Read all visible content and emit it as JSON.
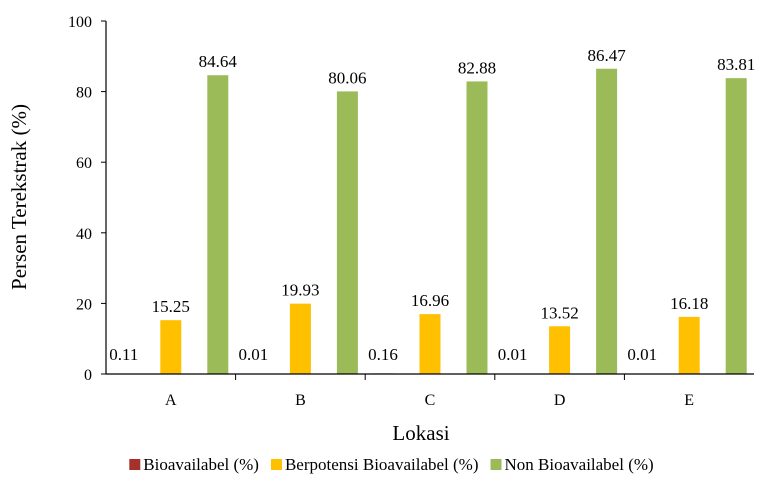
{
  "chart_data": {
    "type": "bar",
    "xlabel": "Lokasi",
    "ylabel": "Persen Terekstrak (%)",
    "ylim": [
      0,
      100
    ],
    "yticks": [
      0,
      20,
      40,
      60,
      80,
      100
    ],
    "grid": false,
    "legend_position": "bottom",
    "categories": [
      "A",
      "B",
      "C",
      "D",
      "E"
    ],
    "series": [
      {
        "name": "Bioavailabel (%)",
        "color": "#A5312C",
        "values": [
          0.11,
          0.01,
          0.16,
          0.01,
          0.01
        ],
        "labels": [
          "0.11",
          "0.01",
          "0.16",
          "0.01",
          "0.01"
        ]
      },
      {
        "name": "Berpotensi Bioavailabel (%)",
        "color": "#FFC000",
        "values": [
          15.25,
          19.93,
          16.96,
          13.52,
          16.18
        ],
        "labels": [
          "15.25",
          "19.93",
          "16.96",
          "13.52",
          "16.18"
        ]
      },
      {
        "name": "Non Bioavailabel (%)",
        "color": "#9BBB59",
        "values": [
          84.64,
          80.06,
          82.88,
          86.47,
          83.81
        ],
        "labels": [
          "84.64",
          "80.06",
          "82.88",
          "86.47",
          "83.81"
        ]
      }
    ]
  }
}
